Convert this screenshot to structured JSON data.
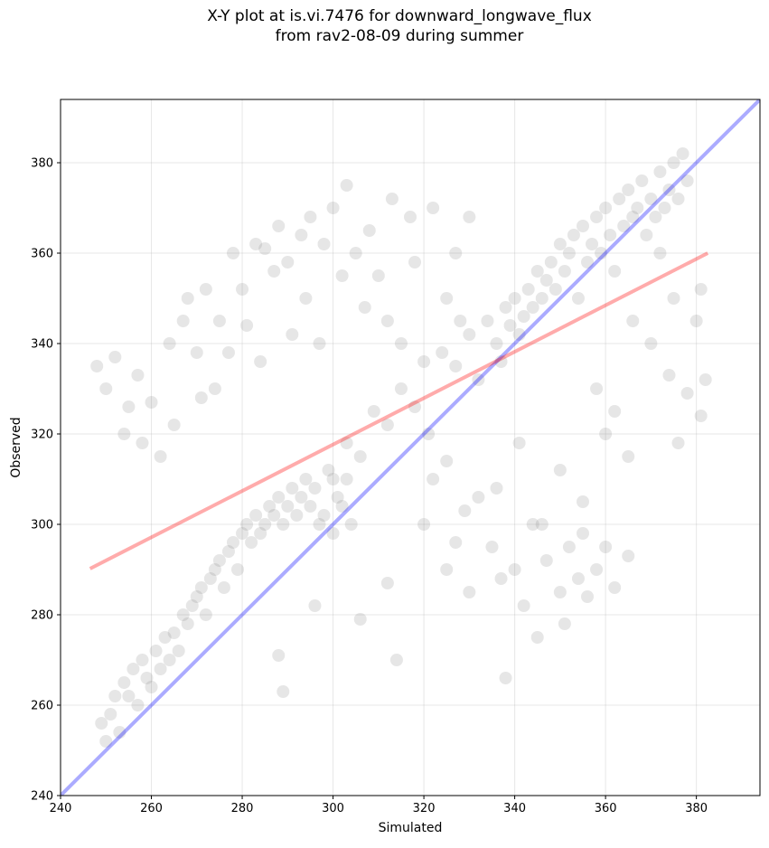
{
  "chart_data": {
    "type": "scatter",
    "title": [
      "X-Y plot at is.vi.7476 for downward_longwave_flux",
      "from rav2-08-09 during summer"
    ],
    "xlabel": "Simulated",
    "ylabel": "Observed",
    "xlim": [
      240,
      394
    ],
    "ylim": [
      240,
      394
    ],
    "xticks": [
      240,
      260,
      280,
      300,
      320,
      340,
      360,
      380
    ],
    "yticks": [
      240,
      260,
      280,
      300,
      320,
      340,
      360,
      380
    ],
    "grid": true,
    "series": [
      {
        "color": "#808080",
        "x": [
          249,
          250,
          251,
          252,
          253,
          254,
          255,
          256,
          257,
          258,
          259,
          260,
          261,
          262,
          263,
          264,
          265,
          266,
          267,
          268,
          269,
          270,
          271,
          272,
          273,
          274,
          275,
          276,
          277,
          278,
          279,
          280,
          281,
          282,
          283,
          284,
          285,
          286,
          287,
          288,
          289,
          290,
          291,
          292,
          293,
          294,
          295,
          296,
          297,
          298,
          299,
          300,
          301,
          302,
          303,
          304,
          248,
          250,
          252,
          254,
          255,
          257,
          258,
          260,
          262,
          264,
          265,
          267,
          268,
          270,
          271,
          272,
          274,
          275,
          277,
          278,
          280,
          281,
          283,
          284,
          285,
          287,
          288,
          290,
          291,
          293,
          294,
          295,
          297,
          298,
          300,
          302,
          303,
          305,
          307,
          308,
          310,
          312,
          313,
          315,
          317,
          318,
          320,
          322,
          325,
          327,
          328,
          330,
          300,
          303,
          306,
          309,
          312,
          315,
          318,
          321,
          324,
          327,
          330,
          332,
          334,
          336,
          337,
          338,
          339,
          340,
          341,
          342,
          343,
          344,
          345,
          346,
          347,
          348,
          349,
          350,
          351,
          352,
          353,
          354,
          355,
          356,
          357,
          358,
          359,
          360,
          361,
          362,
          363,
          364,
          365,
          366,
          367,
          368,
          369,
          370,
          371,
          372,
          373,
          374,
          375,
          376,
          377,
          378,
          320,
          322,
          325,
          327,
          330,
          332,
          335,
          337,
          340,
          342,
          344,
          345,
          347,
          350,
          351,
          352,
          354,
          355,
          356,
          358,
          360,
          362,
          365,
          338,
          314,
          289,
          288,
          312,
          296,
          306,
          374,
          376,
          378,
          380,
          381,
          382,
          381,
          375,
          370,
          365,
          362,
          358,
          366,
          372,
          360,
          355,
          350,
          346,
          341,
          336,
          329,
          325
        ],
        "values": [
          256,
          252,
          258,
          262,
          254,
          265,
          262,
          268,
          260,
          270,
          266,
          264,
          272,
          268,
          275,
          270,
          276,
          272,
          280,
          278,
          282,
          284,
          286,
          280,
          288,
          290,
          292,
          286,
          294,
          296,
          290,
          298,
          300,
          296,
          302,
          298,
          300,
          304,
          302,
          306,
          300,
          304,
          308,
          302,
          306,
          310,
          304,
          308,
          300,
          302,
          312,
          298,
          306,
          304,
          310,
          300,
          335,
          330,
          337,
          320,
          326,
          333,
          318,
          327,
          315,
          340,
          322,
          345,
          350,
          338,
          328,
          352,
          330,
          345,
          338,
          360,
          352,
          344,
          362,
          336,
          361,
          356,
          366,
          358,
          342,
          364,
          350,
          368,
          340,
          362,
          370,
          355,
          375,
          360,
          348,
          365,
          355,
          345,
          372,
          340,
          368,
          358,
          336,
          370,
          350,
          360,
          345,
          368,
          310,
          318,
          315,
          325,
          322,
          330,
          326,
          320,
          338,
          335,
          342,
          332,
          345,
          340,
          336,
          348,
          344,
          350,
          342,
          346,
          352,
          348,
          356,
          350,
          354,
          358,
          352,
          362,
          356,
          360,
          364,
          350,
          366,
          358,
          362,
          368,
          360,
          370,
          364,
          356,
          372,
          366,
          374,
          368,
          370,
          376,
          364,
          372,
          368,
          378,
          370,
          374,
          380,
          372,
          382,
          376,
          300,
          310,
          290,
          296,
          285,
          306,
          295,
          288,
          290,
          282,
          300,
          275,
          292,
          285,
          278,
          295,
          288,
          298,
          284,
          290,
          295,
          286,
          293,
          266,
          270,
          263,
          271,
          287,
          282,
          279,
          333,
          318,
          329,
          345,
          352,
          332,
          324,
          350,
          340,
          315,
          325,
          330,
          345,
          360,
          320,
          305,
          312,
          300,
          318,
          308,
          303,
          314
        ]
      }
    ],
    "lines": [
      {
        "color": "#0000ff",
        "x": [
          240,
          394
        ],
        "values": [
          240,
          394
        ]
      },
      {
        "color": "#ff0000",
        "x": [
          246.5,
          382.5
        ],
        "values": [
          290.2,
          360
        ]
      }
    ]
  }
}
